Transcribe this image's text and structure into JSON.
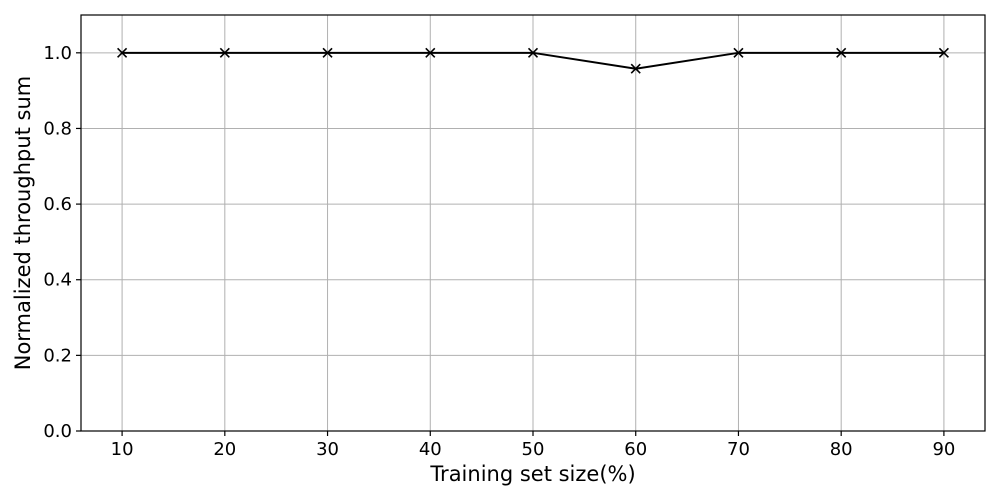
{
  "chart_data": {
    "type": "line",
    "title": "",
    "xlabel": "Training set size(%)",
    "ylabel": "Normalized throughput sum",
    "x": [
      10,
      20,
      30,
      40,
      50,
      60,
      70,
      80,
      90
    ],
    "series": [
      {
        "values": [
          1.0,
          1.0,
          1.0,
          1.0,
          1.0,
          0.958,
          1.0,
          1.0,
          1.0
        ],
        "color": "#000000",
        "marker": "x"
      }
    ],
    "xlim": [
      6,
      94
    ],
    "ylim": [
      0.0,
      1.1
    ],
    "xticks": [
      "10",
      "20",
      "30",
      "40",
      "50",
      "60",
      "70",
      "80",
      "90"
    ],
    "yticks": [
      "0.0",
      "0.2",
      "0.4",
      "0.6",
      "0.8",
      "1.0"
    ],
    "grid": true,
    "legend": "none"
  }
}
